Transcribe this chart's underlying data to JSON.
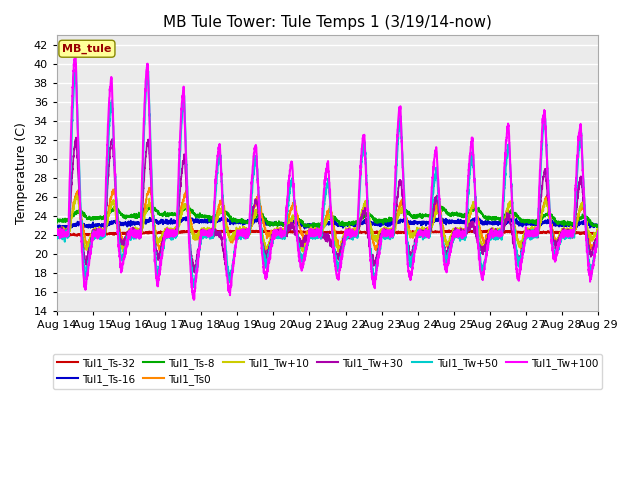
{
  "title": "MB Tule Tower: Tule Temps 1 (3/19/14-now)",
  "ylabel": "Temperature (C)",
  "xlim_start": 0,
  "xlim_end": 15,
  "ylim": [
    14,
    43
  ],
  "yticks": [
    14,
    16,
    18,
    20,
    22,
    24,
    26,
    28,
    30,
    32,
    34,
    36,
    38,
    40,
    42
  ],
  "xtick_labels": [
    "Aug 14",
    "Aug 15",
    "Aug 16",
    "Aug 17",
    "Aug 18",
    "Aug 19",
    "Aug 20",
    "Aug 21",
    "Aug 22",
    "Aug 23",
    "Aug 24",
    "Aug 25",
    "Aug 26",
    "Aug 27",
    "Aug 28",
    "Aug 29"
  ],
  "legend_box_label": "MB_tule",
  "series_order": [
    "Tul1_Ts-32",
    "Tul1_Ts-16",
    "Tul1_Ts-8",
    "Tul1_Ts0",
    "Tul1_Tw+10",
    "Tul1_Tw+30",
    "Tul1_Tw+50",
    "Tul1_Tw+100"
  ],
  "series": {
    "Tul1_Ts-32": {
      "color": "#cc0000",
      "lw": 1.2
    },
    "Tul1_Ts-16": {
      "color": "#0000cc",
      "lw": 1.2
    },
    "Tul1_Ts-8": {
      "color": "#00aa00",
      "lw": 1.2
    },
    "Tul1_Ts0": {
      "color": "#ff8800",
      "lw": 1.2
    },
    "Tul1_Tw+10": {
      "color": "#cccc00",
      "lw": 1.2
    },
    "Tul1_Tw+30": {
      "color": "#aa00aa",
      "lw": 1.2
    },
    "Tul1_Tw+50": {
      "color": "#00cccc",
      "lw": 1.5
    },
    "Tul1_Tw+100": {
      "color": "#ff00ff",
      "lw": 1.5
    }
  },
  "peak_heights": [
    41,
    38.5,
    40,
    37.2,
    31.5,
    31.5,
    29.5,
    29.5,
    32.5,
    35.5,
    31.0,
    32.0,
    33.5,
    35.0,
    33.5
  ],
  "trough_depths": [
    16.5,
    18.5,
    17.0,
    15.5,
    16.0,
    17.5,
    18.5,
    17.5,
    16.7,
    17.5,
    18.5,
    17.5,
    17.5,
    19.5,
    17.5
  ],
  "background_color": "#ffffff",
  "plot_bg": "#ebebeb",
  "grid_color": "#ffffff"
}
